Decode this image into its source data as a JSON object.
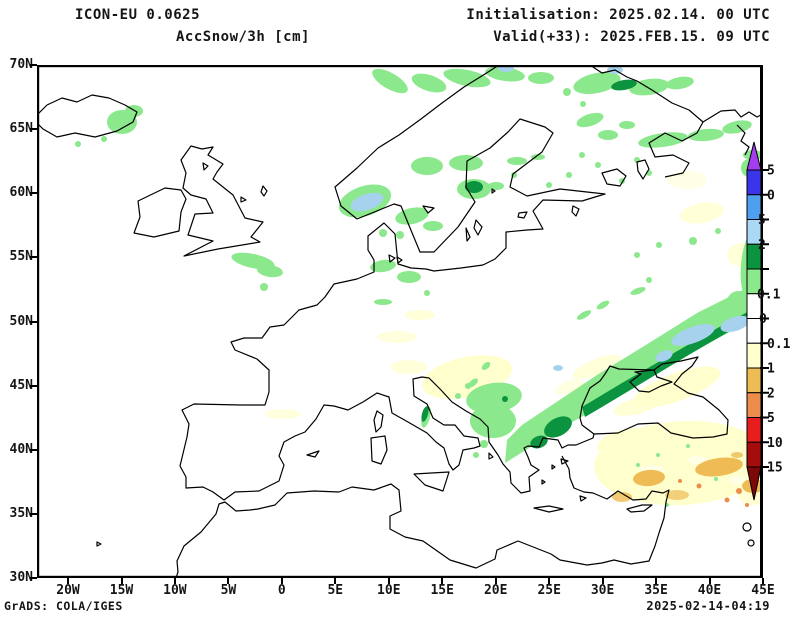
{
  "title": {
    "model": "ICON-EU 0.0625",
    "parameter": "AccSnow/3h [cm]"
  },
  "forecast": {
    "initialisation": "Initialisation: 2025.02.14. 00 UTC",
    "valid": "Valid(+33): 2025.FEB.15. 09 UTC"
  },
  "footer": {
    "credit": "GrADS: COLA/IGES",
    "created": "2025-02-14-04:19"
  },
  "axes": {
    "lat_labels": [
      "70N",
      "65N",
      "60N",
      "55N",
      "50N",
      "45N",
      "40N",
      "35N",
      "30N"
    ],
    "lon_labels": [
      "20W",
      "15W",
      "10W",
      "5W",
      "0",
      "5E",
      "10E",
      "15E",
      "20E",
      "25E",
      "30E",
      "35E",
      "40E",
      "45E"
    ]
  },
  "colorbar": {
    "tick_labels": [
      "5",
      "0",
      "5",
      "2",
      "",
      "0.1",
      "0",
      "0.1",
      "1",
      "2",
      "5",
      "10",
      "15"
    ],
    "segment_colors": [
      "#3a35e8",
      "#4f9ff0",
      "#aad8f5",
      "#0b9340",
      "#8ce88c",
      "#ffffff",
      "#ffffff",
      "#ffffce",
      "#eebb55",
      "#ee8c4c",
      "#e81e1e",
      "#a50d0d"
    ],
    "arrow_top_color": "#a43df0",
    "arrow_bottom_color": "#7d0808"
  },
  "map_colors": {
    "light_green": "#8ce88c",
    "dark_green": "#0b9340",
    "light_blue": "#a6d2ee",
    "pale_yellow": "#ffffce",
    "gold": "#eebb55",
    "orange": "#ee8c4c"
  }
}
